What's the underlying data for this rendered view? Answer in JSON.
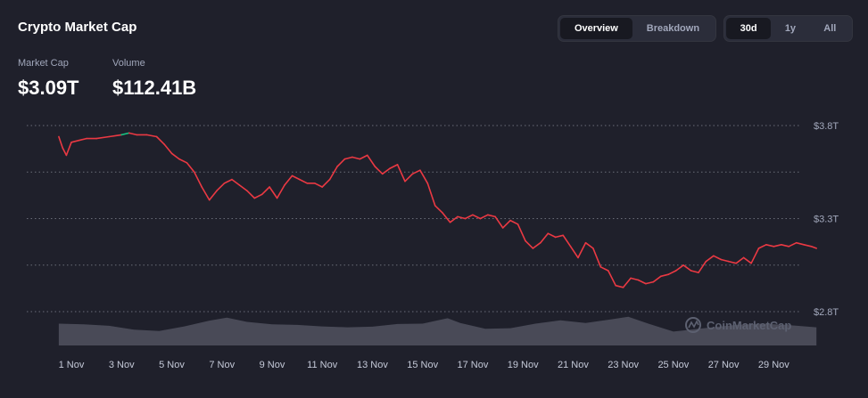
{
  "header": {
    "title": "Crypto Market Cap",
    "view_tabs": [
      {
        "label": "Overview",
        "active": true
      },
      {
        "label": "Breakdown",
        "active": false
      }
    ],
    "range_tabs": [
      {
        "label": "30d",
        "active": true
      },
      {
        "label": "1y",
        "active": false
      },
      {
        "label": "All",
        "active": false
      }
    ]
  },
  "stats": {
    "market_cap_label": "Market Cap",
    "market_cap_value": "$3.09T",
    "volume_label": "Volume",
    "volume_value": "$112.41B"
  },
  "watermark": "CoinMarketCap",
  "colors": {
    "background": "#1f202b",
    "line_down": "#ea3943",
    "line_up": "#16c784",
    "volume": "#6b6e7b",
    "grid": "#6a6d78"
  },
  "chart_data": {
    "type": "line",
    "title": "",
    "xlabel": "",
    "ylabel": "",
    "x_ticks": [
      "1 Nov",
      "3 Nov",
      "5 Nov",
      "7 Nov",
      "9 Nov",
      "11 Nov",
      "13 Nov",
      "15 Nov",
      "17 Nov",
      "19 Nov",
      "21 Nov",
      "23 Nov",
      "25 Nov",
      "27 Nov",
      "29 Nov"
    ],
    "y_ticks": [
      {
        "value": 3.8,
        "label": "$3.8T"
      },
      {
        "value": 3.55,
        "label": ""
      },
      {
        "value": 3.3,
        "label": "$3.3T"
      },
      {
        "value": 3.05,
        "label": ""
      },
      {
        "value": 2.8,
        "label": "$2.8T"
      }
    ],
    "ylim": [
      2.8,
      3.8
    ],
    "xlim": [
      -0.5,
      29.7
    ],
    "grid": true,
    "series": [
      {
        "unit": "T USD",
        "points": [
          [
            -0.5,
            3.74
          ],
          [
            -0.35,
            3.68
          ],
          [
            -0.2,
            3.64
          ],
          [
            0.0,
            3.71
          ],
          [
            0.3,
            3.72
          ],
          [
            0.6,
            3.73
          ],
          [
            1.0,
            3.73
          ],
          [
            1.5,
            3.74
          ],
          [
            2.0,
            3.75
          ],
          [
            2.3,
            3.76
          ],
          [
            2.6,
            3.75
          ],
          [
            3.0,
            3.75
          ],
          [
            3.4,
            3.74
          ],
          [
            3.7,
            3.7
          ],
          [
            4.0,
            3.65
          ],
          [
            4.3,
            3.62
          ],
          [
            4.6,
            3.6
          ],
          [
            4.9,
            3.55
          ],
          [
            5.2,
            3.47
          ],
          [
            5.5,
            3.4
          ],
          [
            5.8,
            3.45
          ],
          [
            6.1,
            3.49
          ],
          [
            6.4,
            3.51
          ],
          [
            6.7,
            3.48
          ],
          [
            7.0,
            3.45
          ],
          [
            7.3,
            3.41
          ],
          [
            7.6,
            3.43
          ],
          [
            7.9,
            3.47
          ],
          [
            8.2,
            3.41
          ],
          [
            8.5,
            3.48
          ],
          [
            8.8,
            3.53
          ],
          [
            9.1,
            3.51
          ],
          [
            9.4,
            3.49
          ],
          [
            9.7,
            3.49
          ],
          [
            10.0,
            3.47
          ],
          [
            10.3,
            3.51
          ],
          [
            10.6,
            3.58
          ],
          [
            10.9,
            3.62
          ],
          [
            11.2,
            3.63
          ],
          [
            11.5,
            3.62
          ],
          [
            11.8,
            3.64
          ],
          [
            12.1,
            3.58
          ],
          [
            12.4,
            3.54
          ],
          [
            12.7,
            3.57
          ],
          [
            13.0,
            3.59
          ],
          [
            13.3,
            3.5
          ],
          [
            13.6,
            3.54
          ],
          [
            13.9,
            3.56
          ],
          [
            14.2,
            3.49
          ],
          [
            14.5,
            3.37
          ],
          [
            14.8,
            3.33
          ],
          [
            15.1,
            3.28
          ],
          [
            15.4,
            3.31
          ],
          [
            15.7,
            3.3
          ],
          [
            16.0,
            3.32
          ],
          [
            16.3,
            3.3
          ],
          [
            16.6,
            3.32
          ],
          [
            16.9,
            3.31
          ],
          [
            17.2,
            3.25
          ],
          [
            17.5,
            3.29
          ],
          [
            17.8,
            3.27
          ],
          [
            18.1,
            3.18
          ],
          [
            18.4,
            3.14
          ],
          [
            18.7,
            3.17
          ],
          [
            19.0,
            3.22
          ],
          [
            19.3,
            3.2
          ],
          [
            19.6,
            3.21
          ],
          [
            19.9,
            3.15
          ],
          [
            20.2,
            3.09
          ],
          [
            20.5,
            3.17
          ],
          [
            20.8,
            3.14
          ],
          [
            21.1,
            3.04
          ],
          [
            21.4,
            3.02
          ],
          [
            21.7,
            2.94
          ],
          [
            22.0,
            2.93
          ],
          [
            22.3,
            2.98
          ],
          [
            22.6,
            2.97
          ],
          [
            22.9,
            2.95
          ],
          [
            23.2,
            2.96
          ],
          [
            23.5,
            2.99
          ],
          [
            23.8,
            3.0
          ],
          [
            24.1,
            3.02
          ],
          [
            24.4,
            3.05
          ],
          [
            24.7,
            3.02
          ],
          [
            25.0,
            3.01
          ],
          [
            25.3,
            3.07
          ],
          [
            25.6,
            3.1
          ],
          [
            25.9,
            3.08
          ],
          [
            26.2,
            3.07
          ],
          [
            26.5,
            3.06
          ],
          [
            26.8,
            3.09
          ],
          [
            27.1,
            3.06
          ],
          [
            27.4,
            3.14
          ],
          [
            27.7,
            3.16
          ],
          [
            28.0,
            3.15
          ],
          [
            28.3,
            3.16
          ],
          [
            28.6,
            3.15
          ],
          [
            28.9,
            3.17
          ],
          [
            29.2,
            3.16
          ],
          [
            29.5,
            3.15
          ],
          [
            29.7,
            3.14
          ]
        ]
      }
    ],
    "volume": {
      "ylim": [
        0,
        1
      ],
      "points": [
        [
          -0.5,
          0.72
        ],
        [
          0.5,
          0.7
        ],
        [
          1.5,
          0.65
        ],
        [
          2.5,
          0.52
        ],
        [
          3.5,
          0.48
        ],
        [
          4.5,
          0.63
        ],
        [
          5.5,
          0.82
        ],
        [
          6.2,
          0.92
        ],
        [
          7.0,
          0.78
        ],
        [
          8.0,
          0.7
        ],
        [
          9.0,
          0.68
        ],
        [
          10.0,
          0.63
        ],
        [
          11.0,
          0.6
        ],
        [
          12.0,
          0.62
        ],
        [
          13.0,
          0.71
        ],
        [
          14.0,
          0.72
        ],
        [
          15.0,
          0.9
        ],
        [
          15.5,
          0.74
        ],
        [
          16.5,
          0.55
        ],
        [
          17.5,
          0.57
        ],
        [
          18.5,
          0.72
        ],
        [
          19.5,
          0.83
        ],
        [
          20.5,
          0.74
        ],
        [
          21.5,
          0.86
        ],
        [
          22.2,
          0.95
        ],
        [
          23.0,
          0.72
        ],
        [
          24.0,
          0.46
        ],
        [
          25.0,
          0.55
        ],
        [
          25.8,
          0.62
        ],
        [
          26.5,
          0.68
        ],
        [
          27.5,
          0.72
        ],
        [
          28.5,
          0.68
        ],
        [
          29.7,
          0.6
        ]
      ]
    }
  }
}
